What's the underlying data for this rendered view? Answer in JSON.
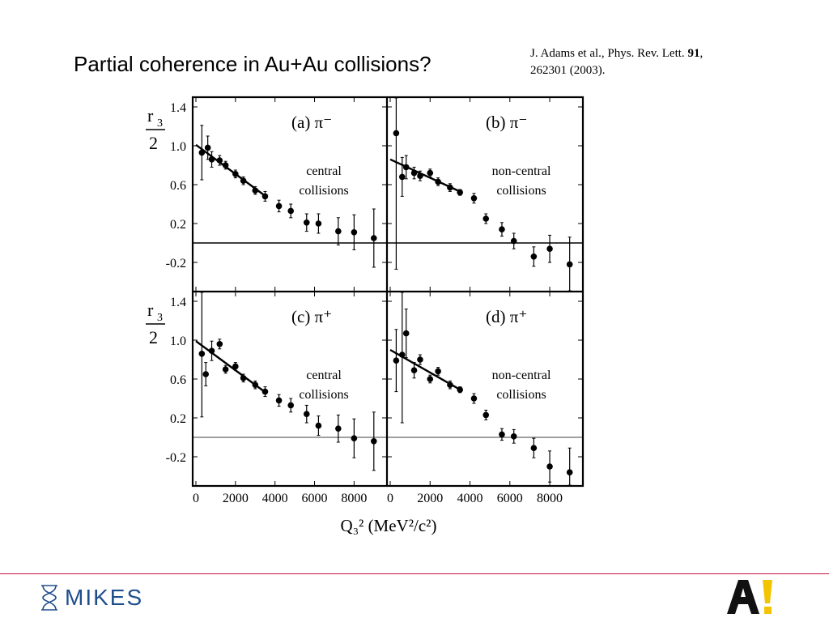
{
  "slide": {
    "title": "Partial coherence in Au+Au collisions?",
    "citation_prefix": "J. Adams et al., Phys. Rev. Lett. ",
    "citation_volume": "91",
    "citation_suffix": ",",
    "citation_line2": "262301 (2003).",
    "footer_logo_text": "MIKES",
    "colors": {
      "footer_line": "#c8103e",
      "mikes_blue": "#1f4e8c",
      "aalto_yellow": "#f5c400"
    }
  },
  "chart_data": {
    "type": "scatter",
    "xlabel": "Q₃² (MeV²/c²)",
    "ylabel": "r₃ / 2",
    "xlim": [
      0,
      9500
    ],
    "ylim": [
      -0.5,
      1.5
    ],
    "x_ticks": [
      "0",
      "2000",
      "4000",
      "6000",
      "8000"
    ],
    "y_ticks": [
      "1.4",
      "1.0",
      "0.6",
      "0.2",
      "-0.2"
    ],
    "panels": [
      {
        "id": "a",
        "label": "(a)",
        "particle": "π⁻",
        "annotation_line1": "central",
        "annotation_line2": "collisions",
        "fit": {
          "x": [
            0,
            3600
          ],
          "y": [
            1.01,
            0.47
          ]
        },
        "points": [
          {
            "x": 300,
            "y": 0.93,
            "err": 0.28
          },
          {
            "x": 600,
            "y": 0.98,
            "err": 0.12
          },
          {
            "x": 800,
            "y": 0.86,
            "err": 0.08
          },
          {
            "x": 1200,
            "y": 0.85,
            "err": 0.05
          },
          {
            "x": 1500,
            "y": 0.8,
            "err": 0.04
          },
          {
            "x": 2000,
            "y": 0.71,
            "err": 0.04
          },
          {
            "x": 2400,
            "y": 0.64,
            "err": 0.04
          },
          {
            "x": 3000,
            "y": 0.54,
            "err": 0.04
          },
          {
            "x": 3500,
            "y": 0.48,
            "err": 0.05
          },
          {
            "x": 4200,
            "y": 0.38,
            "err": 0.06
          },
          {
            "x": 4800,
            "y": 0.33,
            "err": 0.07
          },
          {
            "x": 5600,
            "y": 0.21,
            "err": 0.09
          },
          {
            "x": 6200,
            "y": 0.2,
            "err": 0.1
          },
          {
            "x": 7200,
            "y": 0.12,
            "err": 0.14
          },
          {
            "x": 8000,
            "y": 0.11,
            "err": 0.18
          },
          {
            "x": 9000,
            "y": 0.05,
            "err": 0.3
          }
        ]
      },
      {
        "id": "b",
        "label": "(b)",
        "particle": "π⁻",
        "annotation_line1": "non-central",
        "annotation_line2": "collisions",
        "fit": {
          "x": [
            0,
            3600
          ],
          "y": [
            0.86,
            0.52
          ]
        },
        "points": [
          {
            "x": 300,
            "y": 1.13,
            "err": 1.4
          },
          {
            "x": 600,
            "y": 0.68,
            "err": 0.2
          },
          {
            "x": 800,
            "y": 0.78,
            "err": 0.12
          },
          {
            "x": 1200,
            "y": 0.72,
            "err": 0.06
          },
          {
            "x": 1500,
            "y": 0.69,
            "err": 0.05
          },
          {
            "x": 2000,
            "y": 0.72,
            "err": 0.04
          },
          {
            "x": 2400,
            "y": 0.63,
            "err": 0.04
          },
          {
            "x": 3000,
            "y": 0.57,
            "err": 0.04
          },
          {
            "x": 3500,
            "y": 0.52,
            "err": 0.03
          },
          {
            "x": 4200,
            "y": 0.46,
            "err": 0.05
          },
          {
            "x": 4800,
            "y": 0.25,
            "err": 0.05
          },
          {
            "x": 5600,
            "y": 0.14,
            "err": 0.07
          },
          {
            "x": 6200,
            "y": 0.02,
            "err": 0.08
          },
          {
            "x": 7200,
            "y": -0.14,
            "err": 0.1
          },
          {
            "x": 8000,
            "y": -0.06,
            "err": 0.14
          },
          {
            "x": 9000,
            "y": -0.22,
            "err": 0.28
          }
        ]
      },
      {
        "id": "c",
        "label": "(c)",
        "particle": "π⁺",
        "annotation_line1": "central",
        "annotation_line2": "collisions",
        "fit": {
          "x": [
            0,
            3600
          ],
          "y": [
            0.99,
            0.45
          ]
        },
        "points": [
          {
            "x": 300,
            "y": 0.86,
            "err": 0.65
          },
          {
            "x": 500,
            "y": 0.65,
            "err": 0.12
          },
          {
            "x": 800,
            "y": 0.89,
            "err": 0.1
          },
          {
            "x": 1200,
            "y": 0.96,
            "err": 0.05
          },
          {
            "x": 1500,
            "y": 0.7,
            "err": 0.04
          },
          {
            "x": 2000,
            "y": 0.73,
            "err": 0.04
          },
          {
            "x": 2400,
            "y": 0.61,
            "err": 0.04
          },
          {
            "x": 3000,
            "y": 0.54,
            "err": 0.04
          },
          {
            "x": 3500,
            "y": 0.47,
            "err": 0.05
          },
          {
            "x": 4200,
            "y": 0.38,
            "err": 0.06
          },
          {
            "x": 4800,
            "y": 0.33,
            "err": 0.07
          },
          {
            "x": 5600,
            "y": 0.24,
            "err": 0.09
          },
          {
            "x": 6200,
            "y": 0.12,
            "err": 0.1
          },
          {
            "x": 7200,
            "y": 0.09,
            "err": 0.14
          },
          {
            "x": 8000,
            "y": -0.01,
            "err": 0.2
          },
          {
            "x": 9000,
            "y": -0.04,
            "err": 0.3
          }
        ]
      },
      {
        "id": "d",
        "label": "(d)",
        "particle": "π⁺",
        "annotation_line1": "non-central",
        "annotation_line2": "collisions",
        "fit": {
          "x": [
            0,
            3600
          ],
          "y": [
            0.9,
            0.48
          ]
        },
        "points": [
          {
            "x": 300,
            "y": 0.79,
            "err": 0.32
          },
          {
            "x": 600,
            "y": 0.85,
            "err": 0.7
          },
          {
            "x": 800,
            "y": 1.07,
            "err": 0.25
          },
          {
            "x": 1200,
            "y": 0.69,
            "err": 0.08
          },
          {
            "x": 1500,
            "y": 0.8,
            "err": 0.05
          },
          {
            "x": 2000,
            "y": 0.6,
            "err": 0.04
          },
          {
            "x": 2400,
            "y": 0.68,
            "err": 0.04
          },
          {
            "x": 3000,
            "y": 0.54,
            "err": 0.04
          },
          {
            "x": 3500,
            "y": 0.49,
            "err": 0.03
          },
          {
            "x": 4200,
            "y": 0.4,
            "err": 0.05
          },
          {
            "x": 4800,
            "y": 0.23,
            "err": 0.05
          },
          {
            "x": 5600,
            "y": 0.03,
            "err": 0.06
          },
          {
            "x": 6200,
            "y": 0.01,
            "err": 0.07
          },
          {
            "x": 7200,
            "y": -0.11,
            "err": 0.1
          },
          {
            "x": 8000,
            "y": -0.3,
            "err": 0.16
          },
          {
            "x": 9000,
            "y": -0.36,
            "err": 0.25
          }
        ]
      }
    ]
  }
}
